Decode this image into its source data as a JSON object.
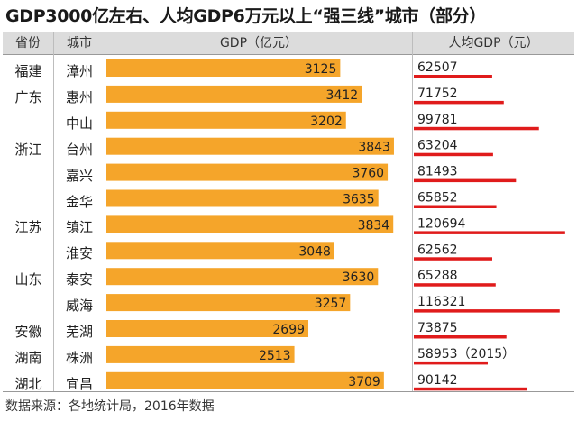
{
  "title": "GDP3000亿左右、人均GDP6万元以上“强三线”城市（部分）",
  "headers": {
    "province": "省份",
    "city": "城市",
    "gdp": "GDP（亿元）",
    "per_capita": "人均GDP（元）"
  },
  "provinces": [
    {
      "name": "福建",
      "row": 0
    },
    {
      "name": "广东",
      "row": 1
    },
    {
      "name": "浙江",
      "row": 3
    },
    {
      "name": "江苏",
      "row": 6
    },
    {
      "name": "山东",
      "row": 8
    },
    {
      "name": "安徽",
      "row": 10
    },
    {
      "name": "湖南",
      "row": 11
    },
    {
      "name": "湖北",
      "row": 12
    }
  ],
  "footer": "数据来源：各地统计局，2016年数据",
  "colors": {
    "gdp_bar": "#f5a52a",
    "per_capita_bar": "#e01b1b",
    "header_bg": "#dcdcdc"
  },
  "chart_data": {
    "type": "bar",
    "title": "GDP3000亿左右、人均GDP6万元以上“强三线”城市（部分）",
    "categories": [
      "漳州",
      "惠州",
      "中山",
      "台州",
      "嘉兴",
      "金华",
      "镇江",
      "淮安",
      "泰安",
      "威海",
      "芜湖",
      "株洲",
      "宜昌"
    ],
    "series": [
      {
        "name": "GDP（亿元）",
        "values": [
          3125,
          3412,
          3202,
          3843,
          3760,
          3635,
          3834,
          3048,
          3630,
          3257,
          2699,
          2513,
          3709
        ]
      },
      {
        "name": "人均GDP（元）",
        "values": [
          62507,
          71752,
          99781,
          63204,
          81493,
          65852,
          120694,
          62562,
          65288,
          116321,
          73875,
          58953,
          90142
        ]
      }
    ],
    "per_capita_labels": [
      "62507",
      "71752",
      "99781",
      "63204",
      "81493",
      "65852",
      "120694",
      "62562",
      "65288",
      "116321",
      "73875",
      "58953（2015）",
      "90142"
    ],
    "gdp_axis": [
      0,
      4000
    ],
    "per_capita_axis": [
      0,
      128000
    ]
  }
}
